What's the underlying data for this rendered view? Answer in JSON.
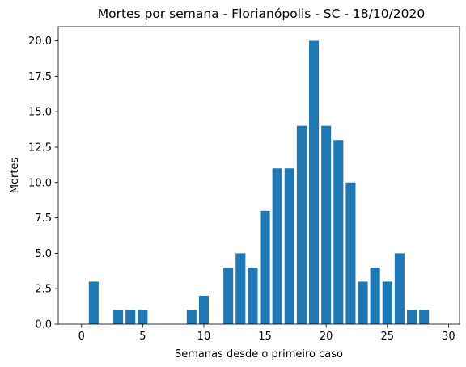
{
  "chart_data": {
    "type": "bar",
    "title": "Mortes por semana - Florianópolis - SC - 18/10/2020",
    "xlabel": "Semanas desde o primeiro caso",
    "ylabel": "Mortes",
    "x": [
      0,
      1,
      2,
      3,
      4,
      5,
      6,
      7,
      8,
      9,
      10,
      11,
      12,
      13,
      14,
      15,
      16,
      17,
      18,
      19,
      20,
      21,
      22,
      23,
      24,
      25,
      26,
      27,
      28
    ],
    "values": [
      0,
      3,
      0,
      1,
      1,
      1,
      0,
      0,
      0,
      1,
      2,
      0,
      4,
      5,
      4,
      8,
      11,
      11,
      14,
      20,
      14,
      13,
      10,
      3,
      4,
      3,
      5,
      1,
      1
    ],
    "xlim": [
      -1.9,
      30.9
    ],
    "ylim": [
      0,
      21
    ],
    "xticks": [
      0,
      5,
      10,
      15,
      20,
      25,
      30
    ],
    "xtick_labels": [
      "0",
      "5",
      "10",
      "15",
      "20",
      "25",
      "30"
    ],
    "yticks": [
      0,
      2.5,
      5,
      7.5,
      10,
      12.5,
      15,
      17.5,
      20
    ],
    "ytick_labels": [
      "0.0",
      "2.5",
      "5.0",
      "7.5",
      "10.0",
      "12.5",
      "15.0",
      "17.5",
      "20.0"
    ],
    "bar_color": "#1f77b4",
    "grid": false,
    "legend": "none"
  }
}
